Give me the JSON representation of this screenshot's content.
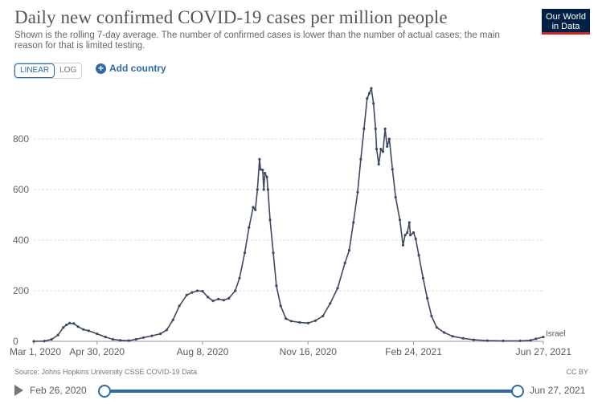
{
  "header": {
    "title": "Daily new confirmed COVID-19 cases per million people",
    "subtitle": "Shown is the rolling 7-day average. The number of confirmed cases is lower than the number of actual cases; the main reason for that is limited testing.",
    "logo_line1": "Our World",
    "logo_line2": "in Data"
  },
  "controls": {
    "linear_label": "LINEAR",
    "log_label": "LOG",
    "add_country_label": "Add country",
    "scale_selected": "linear"
  },
  "footer": {
    "source": "Source: Johns Hopkins University CSSE COVID-19 Data",
    "license": "CC BY"
  },
  "timeline": {
    "start_label": "Feb 26, 2020",
    "end_label": "Jun 27, 2021",
    "range_start_fraction": 0,
    "range_end_fraction": 1
  },
  "chart_data": {
    "type": "line",
    "title": "Daily new confirmed COVID-19 cases per million people",
    "xlabel": "",
    "ylabel": "",
    "x_tick_labels": [
      {
        "label": "Mar 1, 2020",
        "date": "2020-03-01"
      },
      {
        "label": "Apr 30, 2020",
        "date": "2020-04-30"
      },
      {
        "label": "Aug 8, 2020",
        "date": "2020-08-08"
      },
      {
        "label": "Nov 16, 2020",
        "date": "2020-11-16"
      },
      {
        "label": "Feb 24, 2021",
        "date": "2021-02-24"
      },
      {
        "label": "Jun 27, 2021",
        "date": "2021-06-27"
      }
    ],
    "y_ticks": [
      0,
      200,
      400,
      600,
      800
    ],
    "ylim": [
      0,
      1000
    ],
    "xlim": [
      "2020-03-01",
      "2021-06-27"
    ],
    "grid": true,
    "line_color": "#3c4a61",
    "series": [
      {
        "name": "Israel",
        "points": [
          [
            "2020-03-01",
            0
          ],
          [
            "2020-03-11",
            1
          ],
          [
            "2020-03-18",
            8
          ],
          [
            "2020-03-24",
            25
          ],
          [
            "2020-03-29",
            55
          ],
          [
            "2020-04-01",
            65
          ],
          [
            "2020-04-04",
            72
          ],
          [
            "2020-04-08",
            70
          ],
          [
            "2020-04-12",
            58
          ],
          [
            "2020-04-17",
            47
          ],
          [
            "2020-04-22",
            42
          ],
          [
            "2020-04-30",
            30
          ],
          [
            "2020-05-08",
            17
          ],
          [
            "2020-05-15",
            8
          ],
          [
            "2020-05-22",
            4
          ],
          [
            "2020-05-30",
            3
          ],
          [
            "2020-06-06",
            8
          ],
          [
            "2020-06-13",
            15
          ],
          [
            "2020-06-21",
            22
          ],
          [
            "2020-06-29",
            30
          ],
          [
            "2020-07-05",
            45
          ],
          [
            "2020-07-11",
            85
          ],
          [
            "2020-07-17",
            140
          ],
          [
            "2020-07-24",
            183
          ],
          [
            "2020-07-29",
            193
          ],
          [
            "2020-08-03",
            200
          ],
          [
            "2020-08-08",
            198
          ],
          [
            "2020-08-13",
            175
          ],
          [
            "2020-08-18",
            160
          ],
          [
            "2020-08-23",
            167
          ],
          [
            "2020-08-28",
            163
          ],
          [
            "2020-09-02",
            170
          ],
          [
            "2020-09-08",
            200
          ],
          [
            "2020-09-12",
            250
          ],
          [
            "2020-09-17",
            350
          ],
          [
            "2020-09-21",
            450
          ],
          [
            "2020-09-25",
            530
          ],
          [
            "2020-09-27",
            520
          ],
          [
            "2020-09-29",
            600
          ],
          [
            "2020-10-01",
            720
          ],
          [
            "2020-10-02",
            680
          ],
          [
            "2020-10-04",
            677
          ],
          [
            "2020-10-05",
            600
          ],
          [
            "2020-10-06",
            665
          ],
          [
            "2020-10-08",
            650
          ],
          [
            "2020-10-09",
            600
          ],
          [
            "2020-10-11",
            480
          ],
          [
            "2020-10-14",
            350
          ],
          [
            "2020-10-17",
            220
          ],
          [
            "2020-10-21",
            140
          ],
          [
            "2020-10-26",
            90
          ],
          [
            "2020-10-31",
            80
          ],
          [
            "2020-11-08",
            75
          ],
          [
            "2020-11-16",
            72
          ],
          [
            "2020-11-23",
            82
          ],
          [
            "2020-11-30",
            100
          ],
          [
            "2020-12-07",
            150
          ],
          [
            "2020-12-14",
            210
          ],
          [
            "2020-12-21",
            310
          ],
          [
            "2020-12-25",
            360
          ],
          [
            "2020-12-29",
            470
          ],
          [
            "2021-01-02",
            590
          ],
          [
            "2021-01-05",
            720
          ],
          [
            "2021-01-08",
            840
          ],
          [
            "2021-01-11",
            960
          ],
          [
            "2021-01-13",
            980
          ],
          [
            "2021-01-15",
            1000
          ],
          [
            "2021-01-17",
            940
          ],
          [
            "2021-01-19",
            840
          ],
          [
            "2021-01-20",
            760
          ],
          [
            "2021-01-22",
            700
          ],
          [
            "2021-01-24",
            760
          ],
          [
            "2021-01-26",
            750
          ],
          [
            "2021-01-28",
            840
          ],
          [
            "2021-01-30",
            770
          ],
          [
            "2021-02-01",
            800
          ],
          [
            "2021-02-04",
            680
          ],
          [
            "2021-02-07",
            570
          ],
          [
            "2021-02-11",
            480
          ],
          [
            "2021-02-14",
            380
          ],
          [
            "2021-02-16",
            420
          ],
          [
            "2021-02-18",
            430
          ],
          [
            "2021-02-20",
            470
          ],
          [
            "2021-02-21",
            420
          ],
          [
            "2021-02-24",
            430
          ],
          [
            "2021-02-26",
            405
          ],
          [
            "2021-03-01",
            340
          ],
          [
            "2021-03-05",
            250
          ],
          [
            "2021-03-09",
            170
          ],
          [
            "2021-03-13",
            100
          ],
          [
            "2021-03-18",
            55
          ],
          [
            "2021-03-25",
            35
          ],
          [
            "2021-04-02",
            20
          ],
          [
            "2021-04-12",
            12
          ],
          [
            "2021-04-22",
            6
          ],
          [
            "2021-05-05",
            3
          ],
          [
            "2021-05-20",
            2
          ],
          [
            "2021-06-05",
            2
          ],
          [
            "2021-06-15",
            4
          ],
          [
            "2021-06-20",
            10
          ],
          [
            "2021-06-27",
            17
          ]
        ]
      }
    ]
  }
}
